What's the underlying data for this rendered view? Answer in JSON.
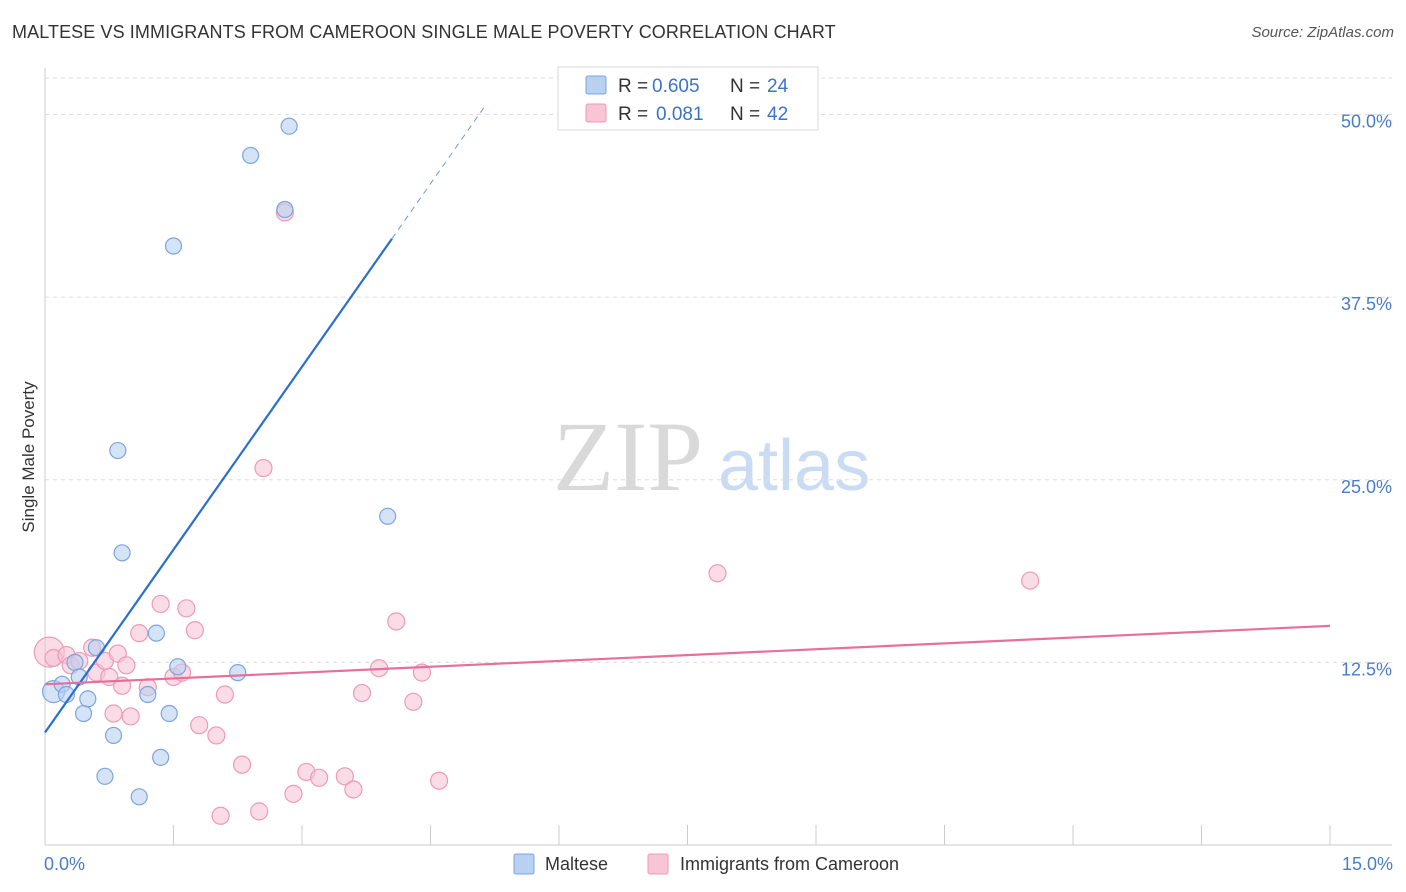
{
  "title": "MALTESE VS IMMIGRANTS FROM CAMEROON SINGLE MALE POVERTY CORRELATION CHART",
  "source": "Source: ZipAtlas.com",
  "watermark": {
    "zip": "ZIP",
    "atlas": "atlas"
  },
  "colors": {
    "blue_fill": "#b9d1f1",
    "blue_stroke": "#7aa5dd",
    "blue_line": "#2a6fcf",
    "pink_fill": "#f7c5d6",
    "pink_stroke": "#ee9ab5",
    "pink_line": "#e76f9b",
    "grid": "#dddddd",
    "axis_text": "#4a7cc9"
  },
  "legend": {
    "rows": [
      {
        "r_label": "R =",
        "r_value": "0.605",
        "n_label": "N =",
        "n_value": "24"
      },
      {
        "r_label": "R =",
        "r_value": "0.081",
        "n_label": "N =",
        "n_value": "42"
      }
    ]
  },
  "chart_data": {
    "type": "scatter",
    "title": "MALTESE VS IMMIGRANTS FROM CAMEROON SINGLE MALE POVERTY CORRELATION CHART",
    "xlabel": "",
    "ylabel": "Single Male Poverty",
    "xlim": [
      0,
      15
    ],
    "ylim": [
      0,
      52.5
    ],
    "x_tick_labels": [
      "0.0%",
      "15.0%"
    ],
    "y_ticks": [
      12.5,
      25.0,
      37.5,
      50.0
    ],
    "y_tick_labels": [
      "12.5%",
      "25.0%",
      "37.5%",
      "50.0%"
    ],
    "grid": true,
    "legend_position": "top-center",
    "series": [
      {
        "name": "Maltese",
        "color": "blue",
        "points": [
          [
            0.1,
            10.5
          ],
          [
            0.2,
            11.0
          ],
          [
            0.25,
            10.3
          ],
          [
            0.35,
            12.5
          ],
          [
            0.4,
            11.5
          ],
          [
            0.45,
            9.0
          ],
          [
            0.5,
            10.0
          ],
          [
            0.6,
            13.5
          ],
          [
            0.7,
            4.7
          ],
          [
            0.8,
            7.5
          ],
          [
            0.85,
            27.0
          ],
          [
            0.9,
            20.0
          ],
          [
            1.1,
            3.3
          ],
          [
            1.2,
            10.3
          ],
          [
            1.3,
            14.5
          ],
          [
            1.35,
            6.0
          ],
          [
            1.45,
            9.0
          ],
          [
            1.5,
            41.0
          ],
          [
            2.25,
            11.8
          ],
          [
            2.4,
            47.2
          ],
          [
            2.8,
            43.5
          ],
          [
            2.85,
            49.2
          ],
          [
            4.0,
            22.5
          ],
          [
            1.55,
            12.2
          ]
        ],
        "trend": {
          "x": [
            0.0,
            4.05
          ],
          "y": [
            7.7,
            41.5
          ],
          "dashed_to": [
            5.15,
            50.7
          ]
        }
      },
      {
        "name": "Immigrants from Cameroon",
        "color": "pink",
        "points": [
          [
            0.05,
            13.2
          ],
          [
            0.1,
            12.8
          ],
          [
            0.25,
            13.0
          ],
          [
            0.3,
            12.3
          ],
          [
            0.4,
            12.6
          ],
          [
            0.55,
            13.5
          ],
          [
            0.6,
            11.8
          ],
          [
            0.7,
            12.6
          ],
          [
            0.75,
            11.5
          ],
          [
            0.8,
            9.0
          ],
          [
            0.85,
            13.1
          ],
          [
            0.9,
            10.9
          ],
          [
            0.95,
            12.3
          ],
          [
            1.0,
            8.8
          ],
          [
            1.1,
            14.5
          ],
          [
            1.2,
            10.8
          ],
          [
            1.35,
            16.5
          ],
          [
            1.5,
            11.5
          ],
          [
            1.6,
            11.8
          ],
          [
            1.65,
            16.2
          ],
          [
            1.75,
            14.7
          ],
          [
            1.8,
            8.2
          ],
          [
            2.0,
            7.5
          ],
          [
            2.05,
            2.0
          ],
          [
            2.1,
            10.3
          ],
          [
            2.3,
            5.5
          ],
          [
            2.5,
            2.3
          ],
          [
            2.55,
            25.8
          ],
          [
            2.8,
            43.3
          ],
          [
            2.9,
            3.5
          ],
          [
            3.05,
            5.0
          ],
          [
            3.2,
            4.6
          ],
          [
            3.5,
            4.7
          ],
          [
            3.6,
            3.8
          ],
          [
            3.7,
            10.4
          ],
          [
            3.9,
            12.1
          ],
          [
            4.1,
            15.3
          ],
          [
            4.3,
            9.8
          ],
          [
            4.4,
            11.8
          ],
          [
            4.6,
            4.4
          ],
          [
            7.85,
            18.6
          ],
          [
            11.5,
            18.1
          ]
        ],
        "trend": {
          "x": [
            0.0,
            15.0
          ],
          "y": [
            11.0,
            15.0
          ]
        }
      }
    ]
  },
  "bottom_legend": {
    "items": [
      "Maltese",
      "Immigrants from Cameroon"
    ]
  }
}
